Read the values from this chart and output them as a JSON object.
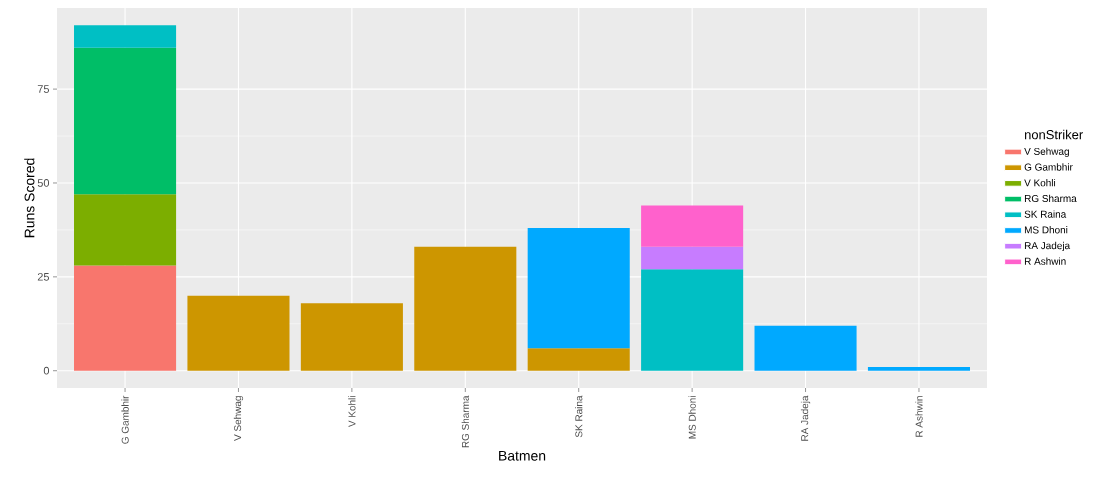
{
  "chart_data": {
    "type": "bar",
    "stacked": true,
    "xlabel": "Batmen",
    "ylabel": "Runs Scored",
    "legend_title": "nonStriker",
    "legend": "right",
    "grid": true,
    "categories": [
      "G Gambhir",
      "V Sehwag",
      "V Kohli",
      "RG Sharma",
      "SK Raina",
      "MS Dhoni",
      "RA Jadeja",
      "R Ashwin"
    ],
    "ylim": [
      -4.6,
      96.6
    ],
    "yticks": [
      0,
      25,
      50,
      75
    ],
    "series": [
      {
        "name": "V Sehwag",
        "color": "#f8766d",
        "values": [
          28,
          null,
          null,
          null,
          null,
          null,
          null,
          null
        ]
      },
      {
        "name": "G Gambhir",
        "color": "#cd9600",
        "values": [
          null,
          20,
          18,
          33,
          6,
          null,
          null,
          null
        ]
      },
      {
        "name": "V Kohli",
        "color": "#7cae00",
        "values": [
          19,
          null,
          null,
          null,
          null,
          null,
          null,
          null
        ]
      },
      {
        "name": "RG Sharma",
        "color": "#00be67",
        "values": [
          39,
          null,
          null,
          null,
          null,
          null,
          null,
          null
        ]
      },
      {
        "name": "SK Raina",
        "color": "#00bfc4",
        "values": [
          6,
          null,
          null,
          null,
          null,
          27,
          null,
          null
        ]
      },
      {
        "name": "MS Dhoni",
        "color": "#00a9ff",
        "values": [
          null,
          null,
          null,
          null,
          32,
          null,
          12,
          1
        ]
      },
      {
        "name": "RA Jadeja",
        "color": "#c77cff",
        "values": [
          null,
          null,
          null,
          null,
          null,
          6,
          null,
          null
        ]
      },
      {
        "name": "R Ashwin",
        "color": "#ff61cc",
        "values": [
          null,
          null,
          null,
          null,
          null,
          11,
          null,
          null
        ]
      }
    ]
  }
}
